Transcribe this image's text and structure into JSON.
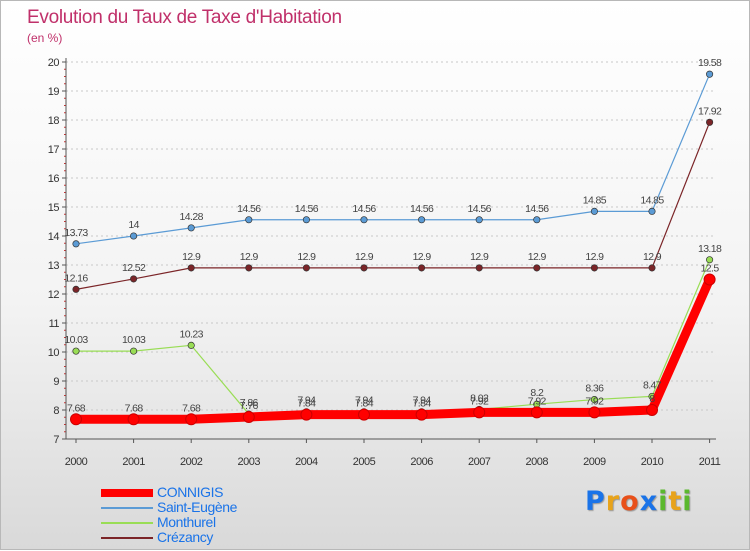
{
  "title": "Evolution du Taux de Taxe d'Habitation",
  "subtitle": "(en %)",
  "chart_data": {
    "type": "line",
    "title": "Evolution du Taux de Taxe d'Habitation",
    "ylabel": "(en %)",
    "xlabel": "",
    "x": [
      "2000",
      "2001",
      "2002",
      "2003",
      "2004",
      "2005",
      "2006",
      "2007",
      "2008",
      "2009",
      "2010",
      "2011"
    ],
    "ylim": [
      7,
      20
    ],
    "yticks": [
      7,
      8,
      9,
      10,
      11,
      12,
      13,
      14,
      15,
      16,
      17,
      18,
      19,
      20
    ],
    "grid": "horizontal dashed",
    "legend_position": "bottom-left",
    "series": [
      {
        "name": "CONNIGIS",
        "color": "#ff0000",
        "values": [
          7.68,
          7.68,
          7.68,
          7.76,
          7.84,
          7.84,
          7.84,
          7.92,
          7.92,
          7.92,
          8.0,
          12.5
        ],
        "labels": [
          "7.68",
          "7.68",
          "7.68",
          "7.76",
          "7.84",
          "7.84",
          "7.84",
          "7.92",
          "7.92",
          "7.92",
          "8",
          "12.5"
        ]
      },
      {
        "name": "Saint-Eugène",
        "color": "#5b9bd5",
        "values": [
          13.73,
          14,
          14.28,
          14.56,
          14.56,
          14.56,
          14.56,
          14.56,
          14.56,
          14.85,
          14.85,
          19.58
        ],
        "labels": [
          "13.73",
          "14",
          "14.28",
          "14.56",
          "14.56",
          "14.56",
          "14.56",
          "14.56",
          "14.56",
          "14.85",
          "14.85",
          "19.58"
        ]
      },
      {
        "name": "Monthurel",
        "color": "#99dd55",
        "values": [
          10.03,
          10.03,
          10.23,
          7.86,
          7.94,
          7.94,
          7.94,
          8.02,
          8.2,
          8.36,
          8.47,
          13.18
        ],
        "labels": [
          "10.03",
          "10.03",
          "10.23",
          "7.86",
          "7.94",
          "7.94",
          "7.94",
          "8.02",
          "8.2",
          "8.36",
          "8.47",
          "13.18"
        ]
      },
      {
        "name": "Crézancy",
        "color": "#7b2528",
        "values": [
          12.16,
          12.52,
          12.9,
          12.9,
          12.9,
          12.9,
          12.9,
          12.9,
          12.9,
          12.9,
          12.9,
          17.92
        ],
        "labels": [
          "12.16",
          "12.52",
          "12.9",
          "12.9",
          "12.9",
          "12.9",
          "12.9",
          "12.9",
          "12.9",
          "12.9",
          "12.9",
          "17.92"
        ]
      }
    ]
  },
  "legend": [
    {
      "label": "CONNIGIS",
      "color": "#ff0000"
    },
    {
      "label": "Saint-Eugène",
      "color": "#5b9bd5"
    },
    {
      "label": "Monthurel",
      "color": "#99dd55"
    },
    {
      "label": "Crézancy",
      "color": "#7b2528"
    }
  ],
  "logo": {
    "letters": [
      "P",
      "r",
      "o",
      "x",
      "i",
      "t",
      "i"
    ],
    "colors": [
      "#1a73e8",
      "#e8a31a",
      "#e8501a",
      "#1a73e8",
      "#5bb82e",
      "#e8a31a",
      "#5bb82e"
    ]
  }
}
